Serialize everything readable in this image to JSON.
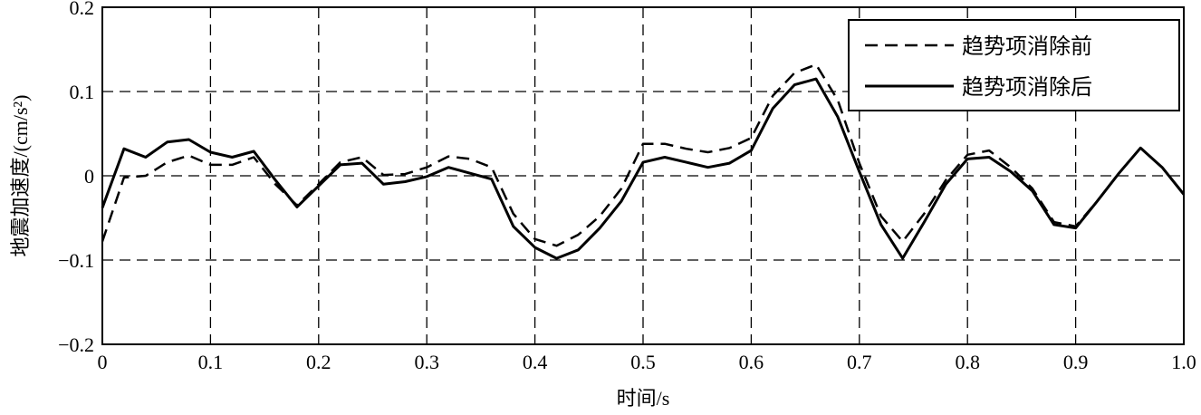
{
  "chart_data": {
    "type": "line",
    "xlabel": "时间/s",
    "ylabel": "地震加速度/(cm/s²)",
    "xlim": [
      0,
      1.0
    ],
    "ylim": [
      -0.2,
      0.2
    ],
    "xticks": [
      "0",
      "0.1",
      "0.2",
      "0.3",
      "0.4",
      "0.5",
      "0.6",
      "0.7",
      "0.8",
      "0.9",
      "1.0"
    ],
    "yticks": [
      "0.2",
      "0.1",
      "0",
      "−0.1",
      "−0.2"
    ],
    "xtick_values": [
      0,
      0.1,
      0.2,
      0.3,
      0.4,
      0.5,
      0.6,
      0.7,
      0.8,
      0.9,
      1.0
    ],
    "ytick_values": [
      0.2,
      0.1,
      0,
      -0.1,
      -0.2
    ],
    "grid": true,
    "legend_position": "top-right",
    "x": [
      0,
      0.02,
      0.04,
      0.06,
      0.08,
      0.1,
      0.12,
      0.14,
      0.16,
      0.18,
      0.2,
      0.22,
      0.24,
      0.26,
      0.28,
      0.3,
      0.32,
      0.34,
      0.36,
      0.38,
      0.4,
      0.42,
      0.44,
      0.46,
      0.48,
      0.5,
      0.52,
      0.54,
      0.56,
      0.58,
      0.6,
      0.62,
      0.64,
      0.66,
      0.68,
      0.7,
      0.72,
      0.74,
      0.76,
      0.78,
      0.8,
      0.82,
      0.84,
      0.86,
      0.88,
      0.9,
      0.92,
      0.94,
      0.96,
      0.98,
      1.0
    ],
    "series": [
      {
        "name": "趋势项消除前",
        "style": "dashed",
        "color": "#000000",
        "values": [
          -0.078,
          -0.002,
          0.0,
          0.016,
          0.024,
          0.013,
          0.013,
          0.022,
          -0.01,
          -0.035,
          -0.01,
          0.016,
          0.022,
          0.001,
          0.002,
          0.01,
          0.023,
          0.02,
          0.01,
          -0.045,
          -0.075,
          -0.083,
          -0.07,
          -0.048,
          -0.015,
          0.038,
          0.038,
          0.032,
          0.028,
          0.033,
          0.045,
          0.095,
          0.122,
          0.132,
          0.09,
          0.015,
          -0.048,
          -0.078,
          -0.045,
          -0.005,
          0.025,
          0.03,
          0.01,
          -0.015,
          -0.055,
          -0.06,
          -0.03,
          0.003,
          0.033,
          0.01,
          -0.022
        ]
      },
      {
        "name": "趋势项消除后",
        "style": "solid",
        "color": "#000000",
        "values": [
          -0.038,
          0.032,
          0.022,
          0.04,
          0.043,
          0.028,
          0.022,
          0.029,
          -0.005,
          -0.037,
          -0.012,
          0.013,
          0.015,
          -0.01,
          -0.007,
          -0.001,
          0.01,
          0.003,
          -0.004,
          -0.06,
          -0.085,
          -0.098,
          -0.088,
          -0.062,
          -0.03,
          0.016,
          0.022,
          0.016,
          0.01,
          0.015,
          0.03,
          0.08,
          0.108,
          0.115,
          0.07,
          0.005,
          -0.058,
          -0.098,
          -0.055,
          -0.01,
          0.02,
          0.022,
          0.005,
          -0.018,
          -0.058,
          -0.062,
          -0.03,
          0.003,
          0.033,
          0.01,
          -0.022
        ]
      }
    ]
  }
}
